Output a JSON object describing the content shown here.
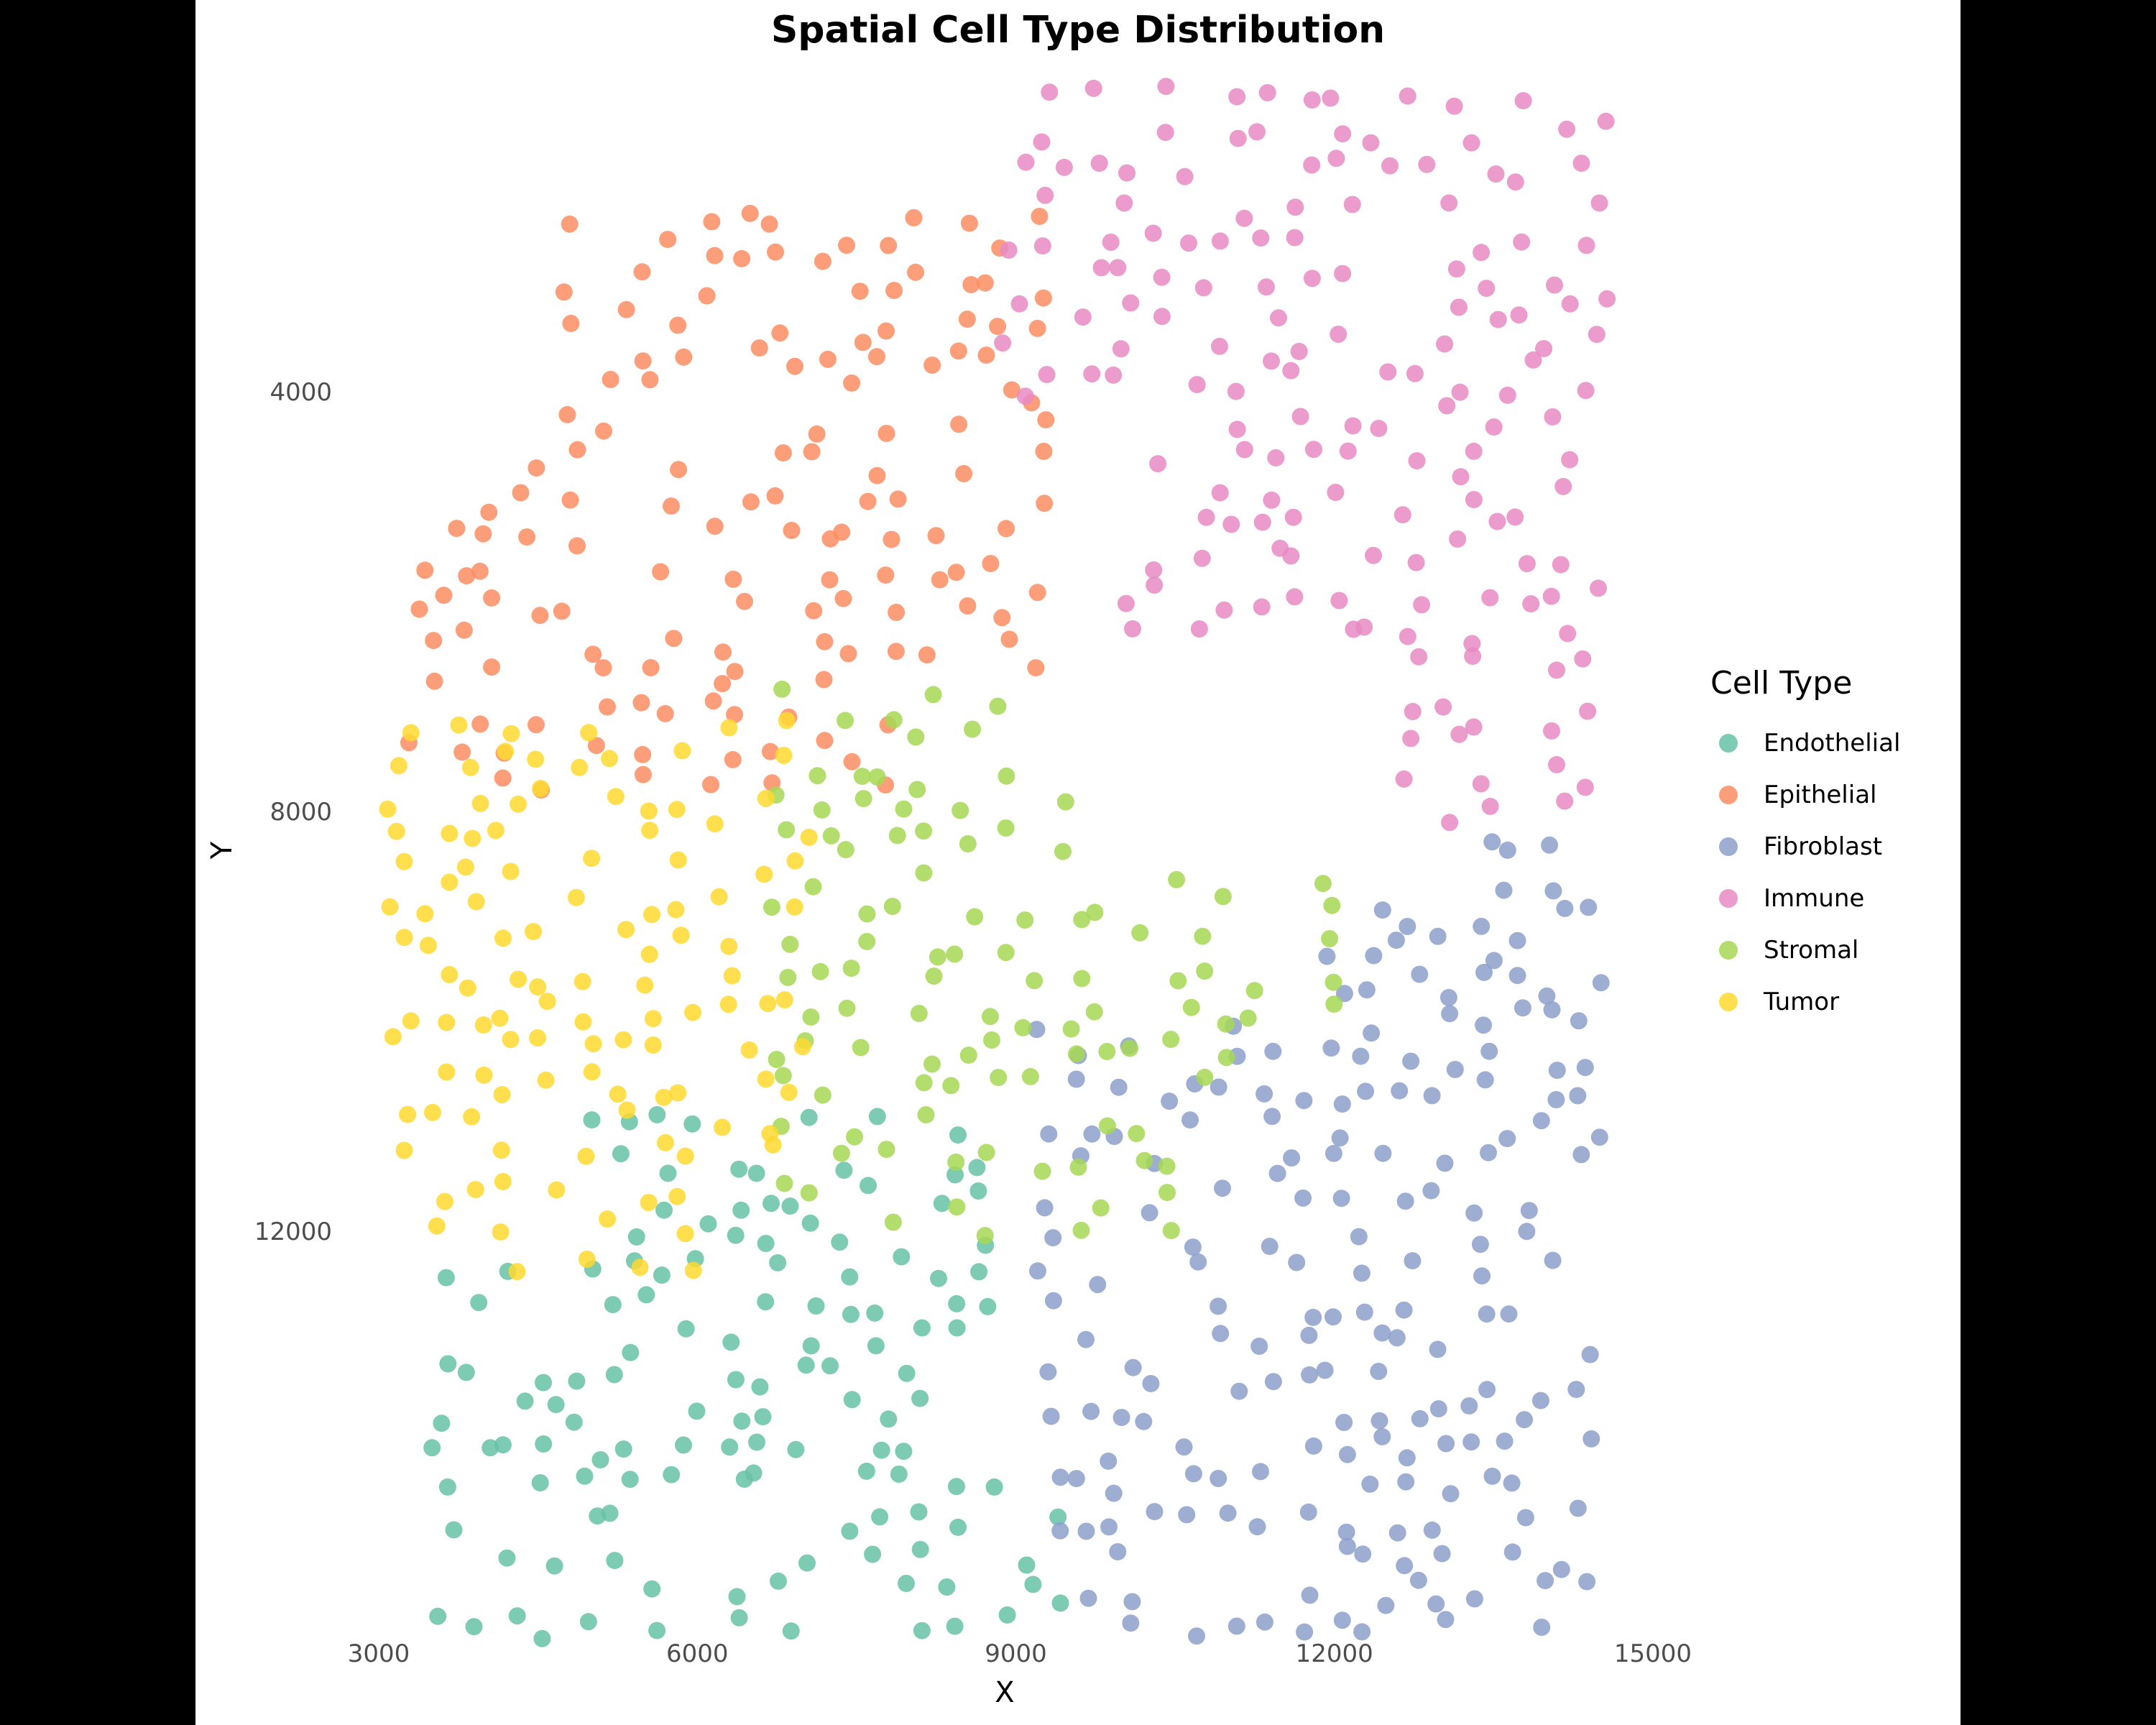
{
  "chart_data": {
    "type": "scatter",
    "title": "Spatial Cell Type Distribution",
    "xlabel": "X",
    "ylabel": "Y",
    "xlim": [
      3000,
      15000
    ],
    "ylim": [
      1000,
      16500
    ],
    "y_reversed": true,
    "x_ticks": [
      "3000",
      "6000",
      "9000",
      "12000",
      "15000"
    ],
    "y_ticks": [
      "4000",
      "8000",
      "12000"
    ],
    "grid": false,
    "legend_title": "Cell Type",
    "legend_position": "right",
    "series": [
      {
        "name": "Endothelial",
        "color": "#66C2A5",
        "region": {
          "x": [
            3600,
            9700
          ],
          "y": [
            11000,
            16000
          ]
        }
      },
      {
        "name": "Epithelial",
        "color": "#FC8D62",
        "region": {
          "x": [
            3400,
            9500
          ],
          "y": [
            2300,
            7900
          ]
        }
      },
      {
        "name": "Fibroblast",
        "color": "#8DA0CB",
        "region": {
          "x": [
            9300,
            14600
          ],
          "y": [
            8300,
            16000
          ]
        }
      },
      {
        "name": "Immune",
        "color": "#E78AC3",
        "region": {
          "x": [
            9000,
            14500
          ],
          "y": [
            1200,
            8300
          ]
        }
      },
      {
        "name": "Stromal",
        "color": "#A6D854",
        "region": {
          "x": [
            6800,
            11900
          ],
          "y": [
            6900,
            12000
          ]
        }
      },
      {
        "name": "Tumor",
        "color": "#FFD92F",
        "region": {
          "x": [
            3200,
            7000
          ],
          "y": [
            7200,
            12500
          ]
        }
      }
    ]
  },
  "legend": {
    "title": "Cell Type",
    "items": [
      {
        "label": "Endothelial",
        "color": "#66C2A5"
      },
      {
        "label": "Epithelial",
        "color": "#FC8D62"
      },
      {
        "label": "Fibroblast",
        "color": "#8DA0CB"
      },
      {
        "label": "Immune",
        "color": "#E78AC3"
      },
      {
        "label": "Stromal",
        "color": "#A6D854"
      },
      {
        "label": "Tumor",
        "color": "#FFD92F"
      }
    ]
  }
}
